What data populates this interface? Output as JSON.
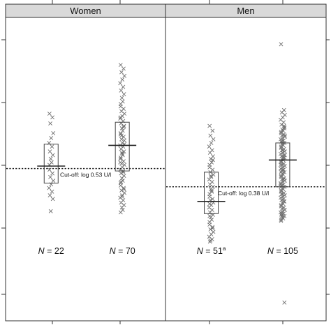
{
  "chart_data": {
    "type": "scatter",
    "title": "",
    "xlabel": "",
    "ylabel": "",
    "ylim": [
      -0.72,
      1.77
    ],
    "colors": {
      "frame": "#333333",
      "strip": "#d9d9d9",
      "marker": "#707070",
      "box": "#444444"
    },
    "panels": [
      {
        "name": "Women",
        "cutoff": {
          "value": 0.53,
          "label": "Cut-off: log 0.53 U/l"
        },
        "groups": [
          {
            "n_label": "22",
            "median": 0.55,
            "box": [
              0.41,
              0.73
            ],
            "points": [
              0.98,
              0.95,
              0.9,
              0.82,
              0.78,
              0.74,
              0.71,
              0.67,
              0.64,
              0.61,
              0.58,
              0.56,
              0.52,
              0.49,
              0.46,
              0.43,
              0.4,
              0.37,
              0.34,
              0.31,
              0.28,
              0.18
            ]
          },
          {
            "n_label": "70",
            "median": 0.72,
            "box": [
              0.51,
              0.91
            ],
            "points": [
              1.38,
              1.35,
              1.32,
              1.29,
              1.26,
              1.23,
              1.2,
              1.17,
              1.14,
              1.11,
              1.08,
              1.06,
              1.04,
              1.02,
              1.0,
              0.98,
              0.96,
              0.94,
              0.92,
              0.9,
              0.88,
              0.86,
              0.84,
              0.82,
              0.81,
              0.79,
              0.77,
              0.76,
              0.74,
              0.72,
              0.71,
              0.69,
              0.67,
              0.66,
              0.64,
              0.62,
              0.61,
              0.59,
              0.57,
              0.56,
              0.54,
              0.52,
              0.51,
              0.49,
              0.47,
              0.45,
              0.43,
              0.41,
              0.39,
              0.37,
              0.35,
              0.33,
              0.31,
              0.29,
              0.27,
              0.25,
              0.23,
              0.21,
              0.19,
              0.17,
              0.95,
              0.87,
              0.8,
              0.73,
              0.65,
              0.58,
              0.5,
              0.42,
              0.36,
              0.3
            ]
          }
        ]
      },
      {
        "name": "Men",
        "cutoff": {
          "value": 0.38,
          "label": "Cut-off: log 0.38 U/l"
        },
        "groups": [
          {
            "n_label": "51",
            "n_sup": "a",
            "median": 0.26,
            "box": [
              0.16,
              0.5
            ],
            "points": [
              0.88,
              0.84,
              0.8,
              0.77,
              0.74,
              0.71,
              0.68,
              0.66,
              0.63,
              0.61,
              0.58,
              0.56,
              0.54,
              0.52,
              0.5,
              0.48,
              0.46,
              0.44,
              0.42,
              0.4,
              0.38,
              0.36,
              0.34,
              0.32,
              0.3,
              0.28,
              0.27,
              0.25,
              0.23,
              0.21,
              0.19,
              0.17,
              0.15,
              0.13,
              0.11,
              0.09,
              0.07,
              0.05,
              0.03,
              0.01,
              -0.01,
              -0.03,
              -0.05,
              -0.07,
              0.6,
              0.47,
              0.35,
              0.24,
              0.14,
              0.04,
              -0.06
            ]
          },
          {
            "n_label": "105",
            "median": 0.6,
            "box": [
              0.38,
              0.74
            ],
            "points": [
              1.55,
              1.01,
              0.99,
              0.97,
              0.95,
              0.93,
              0.91,
              0.89,
              0.87,
              0.85,
              0.84,
              0.83,
              0.82,
              0.81,
              0.8,
              0.79,
              0.78,
              0.77,
              0.76,
              0.75,
              0.74,
              0.73,
              0.72,
              0.71,
              0.7,
              0.69,
              0.68,
              0.67,
              0.66,
              0.65,
              0.64,
              0.63,
              0.62,
              0.61,
              0.6,
              0.59,
              0.58,
              0.57,
              0.56,
              0.55,
              0.54,
              0.53,
              0.52,
              0.51,
              0.5,
              0.49,
              0.48,
              0.47,
              0.46,
              0.45,
              0.44,
              0.43,
              0.42,
              0.41,
              0.4,
              0.39,
              0.38,
              0.37,
              0.36,
              0.35,
              0.34,
              0.33,
              0.32,
              0.31,
              0.3,
              0.29,
              0.28,
              0.27,
              0.26,
              0.25,
              0.24,
              0.23,
              0.22,
              0.21,
              0.2,
              0.19,
              0.18,
              0.17,
              0.16,
              0.15,
              0.14,
              0.13,
              0.12,
              0.11,
              0.1,
              0.88,
              0.76,
              0.64,
              0.52,
              0.4,
              0.28,
              0.16,
              0.86,
              0.74,
              0.62,
              0.5,
              0.38,
              0.26,
              0.14,
              0.8,
              0.68,
              0.56,
              0.44,
              0.32,
              -0.57
            ]
          }
        ]
      }
    ]
  }
}
